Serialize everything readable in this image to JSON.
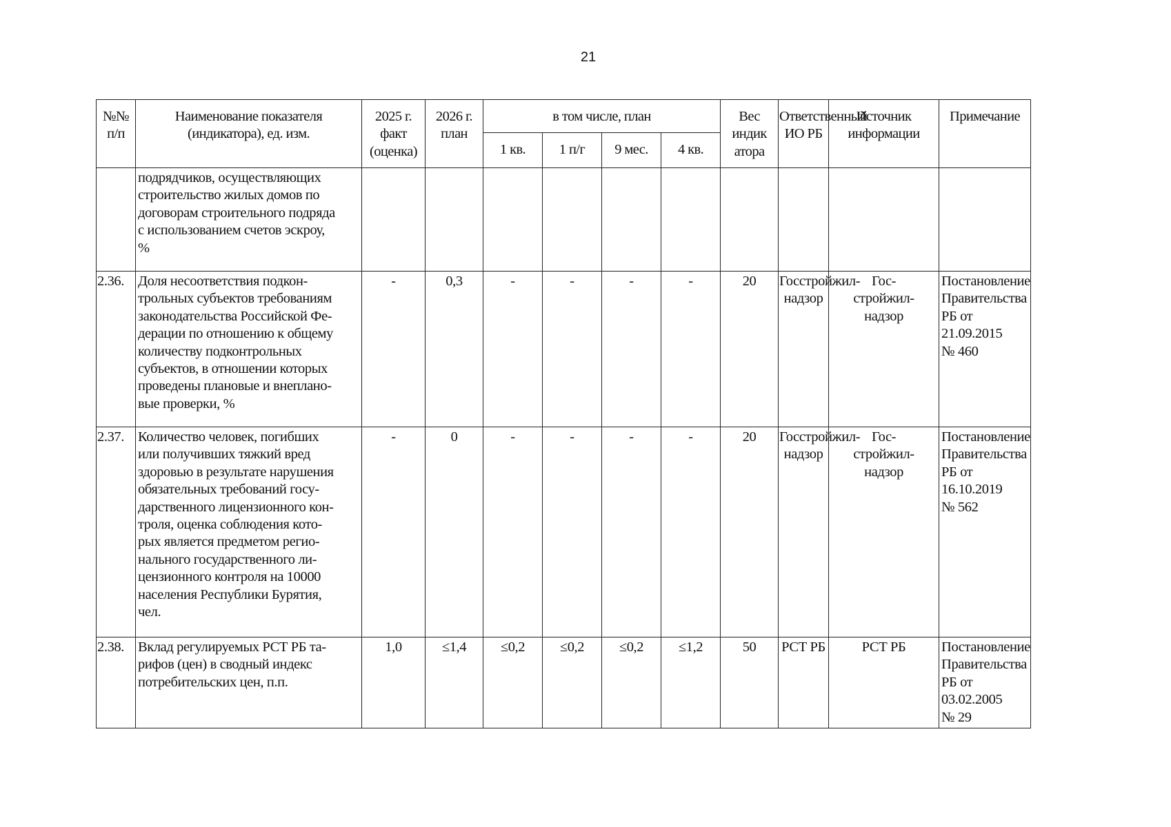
{
  "page_number": "21",
  "header": {
    "num": "№№\nп/п",
    "name": "Наименование показателя\n(индикатора), ед. изм.",
    "fact2025": "2025 г.\nфакт\n(оценка)",
    "plan2026": "2026 г.\nплан",
    "incl_plan": "в том числе, план",
    "q1": "1 кв.",
    "h1": "1 п/г",
    "m9": "9 мес.",
    "q4": "4 кв.",
    "weight": "Вес\nиндик\nатора",
    "responsible": "Ответственный\nИО РБ",
    "source": "Источник\nинформации",
    "note": "Примечание"
  },
  "rows": [
    {
      "num": "",
      "name": "подрядчиков, осуществляющих\nстроительство жилых домов по\nдоговорам строительного подряда\nс использованием счетов эскроу,\n%",
      "fact2025": "",
      "plan2026": "",
      "q1": "",
      "h1": "",
      "m9": "",
      "q4": "",
      "weight": "",
      "responsible": "",
      "source": "",
      "note": ""
    },
    {
      "num": "2.36.",
      "name": "Доля несоответствия подкон-\nтрольных субъектов требованиям\nзаконодательства Российской Фе-\nдерации по отношению к общему\nколичеству подконтрольных\nсубъектов, в отношении которых\nпроведены плановые и внеплано-\nвые проверки, %",
      "fact2025": "-",
      "plan2026": "0,3",
      "q1": "-",
      "h1": "-",
      "m9": "-",
      "q4": "-",
      "weight": "20",
      "responsible": "Госстройжил-\nнадзор",
      "source": "Гос-\nстройжил-\nнадзор",
      "note": "Постановление\nПравительства\nРБ от 21.09.2015\n№ 460"
    },
    {
      "num": "2.37.",
      "name": "Количество человек, погибших\nили получивших тяжкий вред\nздоровью в результате нарушения\nобязательных требований госу-\nдарственного лицензионного кон-\nтроля, оценка соблюдения кото-\nрых является предметом регио-\nнального государственного ли-\nцензионного контроля на 10000\nнаселения Республики Бурятия,\nчел.",
      "fact2025": "-",
      "plan2026": "0",
      "q1": "-",
      "h1": "-",
      "m9": "-",
      "q4": "-",
      "weight": "20",
      "responsible": "Госстройжил-\nнадзор",
      "source": "Гос-\nстройжил-\nнадзор",
      "note": "Постановление\nПравительства\nРБ от 16.10.2019\n№ 562"
    },
    {
      "num": "2.38.",
      "name": "Вклад регулируемых РСТ РБ та-\nрифов (цен) в сводный индекс\nпотребительских цен, п.п.",
      "fact2025": "1,0",
      "plan2026": "≤1,4",
      "q1": "≤0,2",
      "h1": "≤0,2",
      "m9": "≤0,2",
      "q4": "≤1,2",
      "weight": "50",
      "responsible": "РСТ РБ",
      "source": "РСТ РБ",
      "note": "Постановление\nПравительства\nРБ от 03.02.2005\n№ 29"
    }
  ]
}
